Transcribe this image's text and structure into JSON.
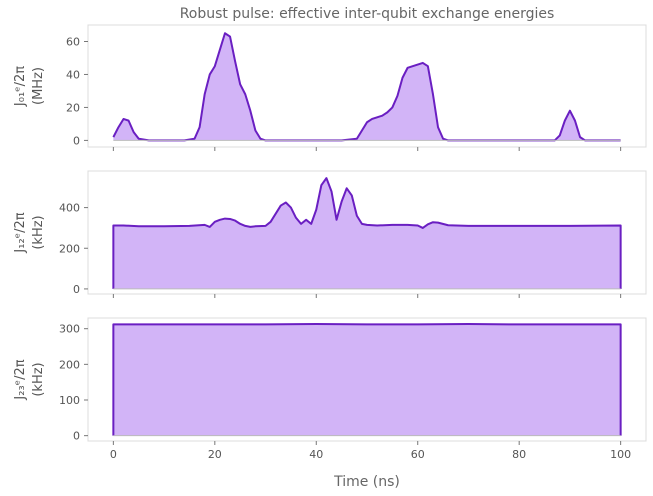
{
  "chart_data": {
    "type": "area",
    "title": "Robust pulse: effective inter-qubit exchange energies",
    "xlabel": "Time (ns)",
    "xlim": [
      -5,
      105
    ],
    "xticks": [
      0,
      20,
      40,
      60,
      80,
      100
    ],
    "colors": {
      "line": "#6a1fc2",
      "fill": "#d2b4f7",
      "frame": "#dcdcdc",
      "text": "#666666"
    },
    "grid": false,
    "panels": [
      {
        "ylabel_main": "J₀₁ᵉ/2π",
        "ylabel_unit": "(MHz)",
        "ylim": [
          -4,
          70
        ],
        "yticks": [
          0,
          20,
          40,
          60
        ],
        "series": [
          {
            "x": [
              0,
              1,
              2,
              3,
              4,
              5,
              7,
              10,
              14,
              16,
              17,
              18,
              19,
              20,
              21,
              22,
              23,
              24,
              25,
              26,
              27,
              28,
              29,
              30,
              35,
              45,
              48,
              49,
              50,
              51,
              52,
              53,
              54,
              55,
              56,
              57,
              58,
              59,
              60,
              61,
              62,
              63,
              64,
              65,
              66,
              70,
              80,
              87,
              88,
              89,
              90,
              91,
              92,
              93,
              95,
              100
            ],
            "y": [
              2,
              8,
              13,
              12,
              5,
              1,
              0,
              0,
              0,
              1,
              8,
              28,
              40,
              45,
              55,
              65,
              63,
              48,
              34,
              28,
              18,
              6,
              1,
              0,
              0,
              0,
              1,
              6,
              11,
              13,
              14,
              15,
              17,
              20,
              27,
              38,
              44,
              45,
              46,
              47,
              45,
              28,
              8,
              1,
              0,
              0,
              0,
              0,
              3,
              12,
              18,
              12,
              2,
              0,
              0,
              0
            ]
          }
        ]
      },
      {
        "ylabel_main": "J₁₂ᵉ/2π",
        "ylabel_unit": "(kHz)",
        "ylim": [
          -25,
          580
        ],
        "yticks": [
          0,
          200,
          400
        ],
        "series": [
          {
            "x": [
              0,
              2,
              5,
              10,
              15,
              18,
              19,
              20,
              21,
              22,
              23,
              24,
              25,
              26,
              27,
              28,
              30,
              31,
              32,
              33,
              34,
              35,
              36,
              37,
              38,
              39,
              40,
              41,
              42,
              43,
              44,
              45,
              46,
              47,
              48,
              49,
              50,
              52,
              55,
              58,
              60,
              61,
              62,
              63,
              64,
              66,
              70,
              80,
              90,
              100
            ],
            "y": [
              312,
              312,
              308,
              308,
              310,
              315,
              305,
              330,
              340,
              346,
              344,
              336,
              320,
              310,
              305,
              308,
              310,
              330,
              370,
              410,
              425,
              400,
              350,
              320,
              340,
              320,
              390,
              510,
              545,
              480,
              340,
              430,
              495,
              460,
              360,
              320,
              315,
              312,
              315,
              315,
              312,
              300,
              318,
              328,
              326,
              313,
              310,
              310,
              310,
              312
            ]
          }
        ]
      },
      {
        "ylabel_main": "J₂₃ᵉ/2π",
        "ylabel_unit": "(kHz)",
        "ylim": [
          -15,
          330
        ],
        "yticks": [
          0,
          100,
          200,
          300
        ],
        "series": [
          {
            "x": [
              0,
              10,
              20,
              30,
              40,
              50,
              60,
              70,
              80,
              90,
              100
            ],
            "y": [
              312,
              312,
              312,
              312,
              313,
              312,
              312,
              313,
              312,
              312,
              312
            ]
          }
        ]
      }
    ]
  }
}
